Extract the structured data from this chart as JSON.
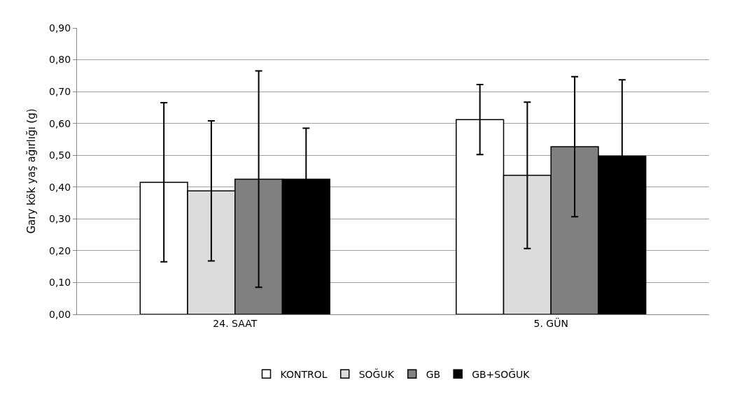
{
  "chart_data": {
    "type": "bar",
    "ylabel": "Gary kök yaş ağırlığı (g)",
    "categories": [
      "24. SAAT",
      "5. GÜN"
    ],
    "series": [
      {
        "name": "KONTROL",
        "color": "#ffffff",
        "values": [
          0.415,
          0.612
        ],
        "errors": [
          0.25,
          0.11
        ]
      },
      {
        "name": "SOĞUK",
        "color": "#dcdcdc",
        "values": [
          0.388,
          0.437
        ],
        "errors": [
          0.22,
          0.23
        ]
      },
      {
        "name": "GB",
        "color": "#808080",
        "values": [
          0.425,
          0.527
        ],
        "errors": [
          0.34,
          0.22
        ]
      },
      {
        "name": "GB+SOĞUK",
        "color": "#000000",
        "values": [
          0.425,
          0.497
        ],
        "errors": [
          0.16,
          0.24
        ]
      }
    ],
    "ylim": [
      0,
      0.9
    ],
    "yticks": [
      {
        "value": 0,
        "label": "0,00"
      },
      {
        "value": 0.1,
        "label": "0,10"
      },
      {
        "value": 0.2,
        "label": "0,20"
      },
      {
        "value": 0.3,
        "label": "0,30"
      },
      {
        "value": 0.4,
        "label": "0,40"
      },
      {
        "value": 0.5,
        "label": "0,50"
      },
      {
        "value": 0.6,
        "label": "0,60"
      },
      {
        "value": 0.7,
        "label": "0,70"
      },
      {
        "value": 0.8,
        "label": "0,80"
      },
      {
        "value": 0.9,
        "label": "0,90"
      }
    ],
    "grid": "y",
    "legend": "bottom"
  }
}
